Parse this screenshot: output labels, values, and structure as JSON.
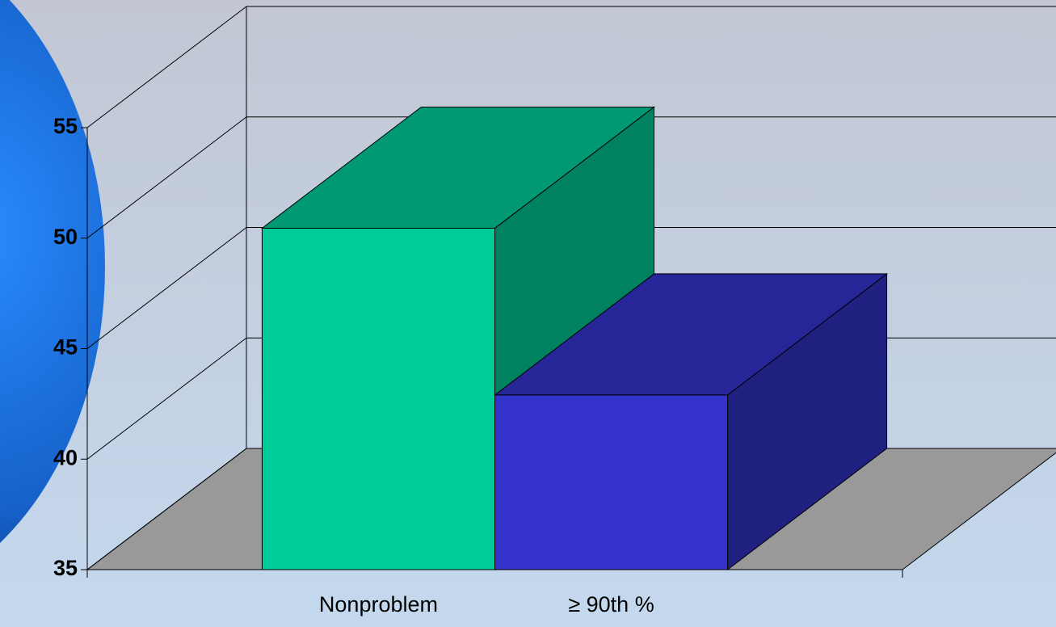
{
  "chart_data": {
    "type": "bar3d",
    "categories": [
      "Nonproblem",
      "≥ 90th %"
    ],
    "values": [
      50.45,
      42.9
    ],
    "colors": [
      "#00cc99",
      "#3333cc"
    ],
    "ylim": [
      35,
      55
    ],
    "yticks": [
      35,
      40,
      45,
      50,
      55
    ],
    "grid": true
  }
}
